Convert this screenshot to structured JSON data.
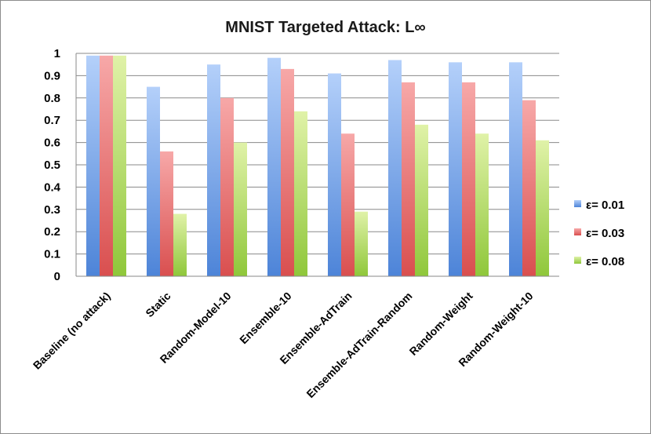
{
  "chart_data": {
    "type": "bar",
    "title": "MNIST Targeted Attack: L∞",
    "xlabel": "",
    "ylabel": "",
    "ylim": [
      0,
      1
    ],
    "yticks": [
      "0",
      "0.1",
      "0.2",
      "0.3",
      "0.4",
      "0.5",
      "0.6",
      "0.7",
      "0.8",
      "0.9",
      "1"
    ],
    "grid": true,
    "legend_position": "right",
    "categories": [
      "Baseline (no attack)",
      "Static",
      "Random-Model-10",
      "Ensemble-10",
      "Ensemble-AdTrain",
      "Ensemble-AdTrain-Random",
      "Random-Weight",
      "Random-Weight-10"
    ],
    "series": [
      {
        "name": "ε= 0.01",
        "color": "#7fa8e8",
        "values": [
          0.99,
          0.85,
          0.95,
          0.98,
          0.91,
          0.97,
          0.96,
          0.96
        ]
      },
      {
        "name": "ε= 0.03",
        "color": "#e86a6a",
        "values": [
          0.99,
          0.56,
          0.8,
          0.93,
          0.64,
          0.87,
          0.87,
          0.79
        ]
      },
      {
        "name": "ε= 0.08",
        "color": "#b5dc5a",
        "values": [
          0.99,
          0.28,
          0.6,
          0.74,
          0.29,
          0.68,
          0.64,
          0.61
        ]
      }
    ]
  }
}
